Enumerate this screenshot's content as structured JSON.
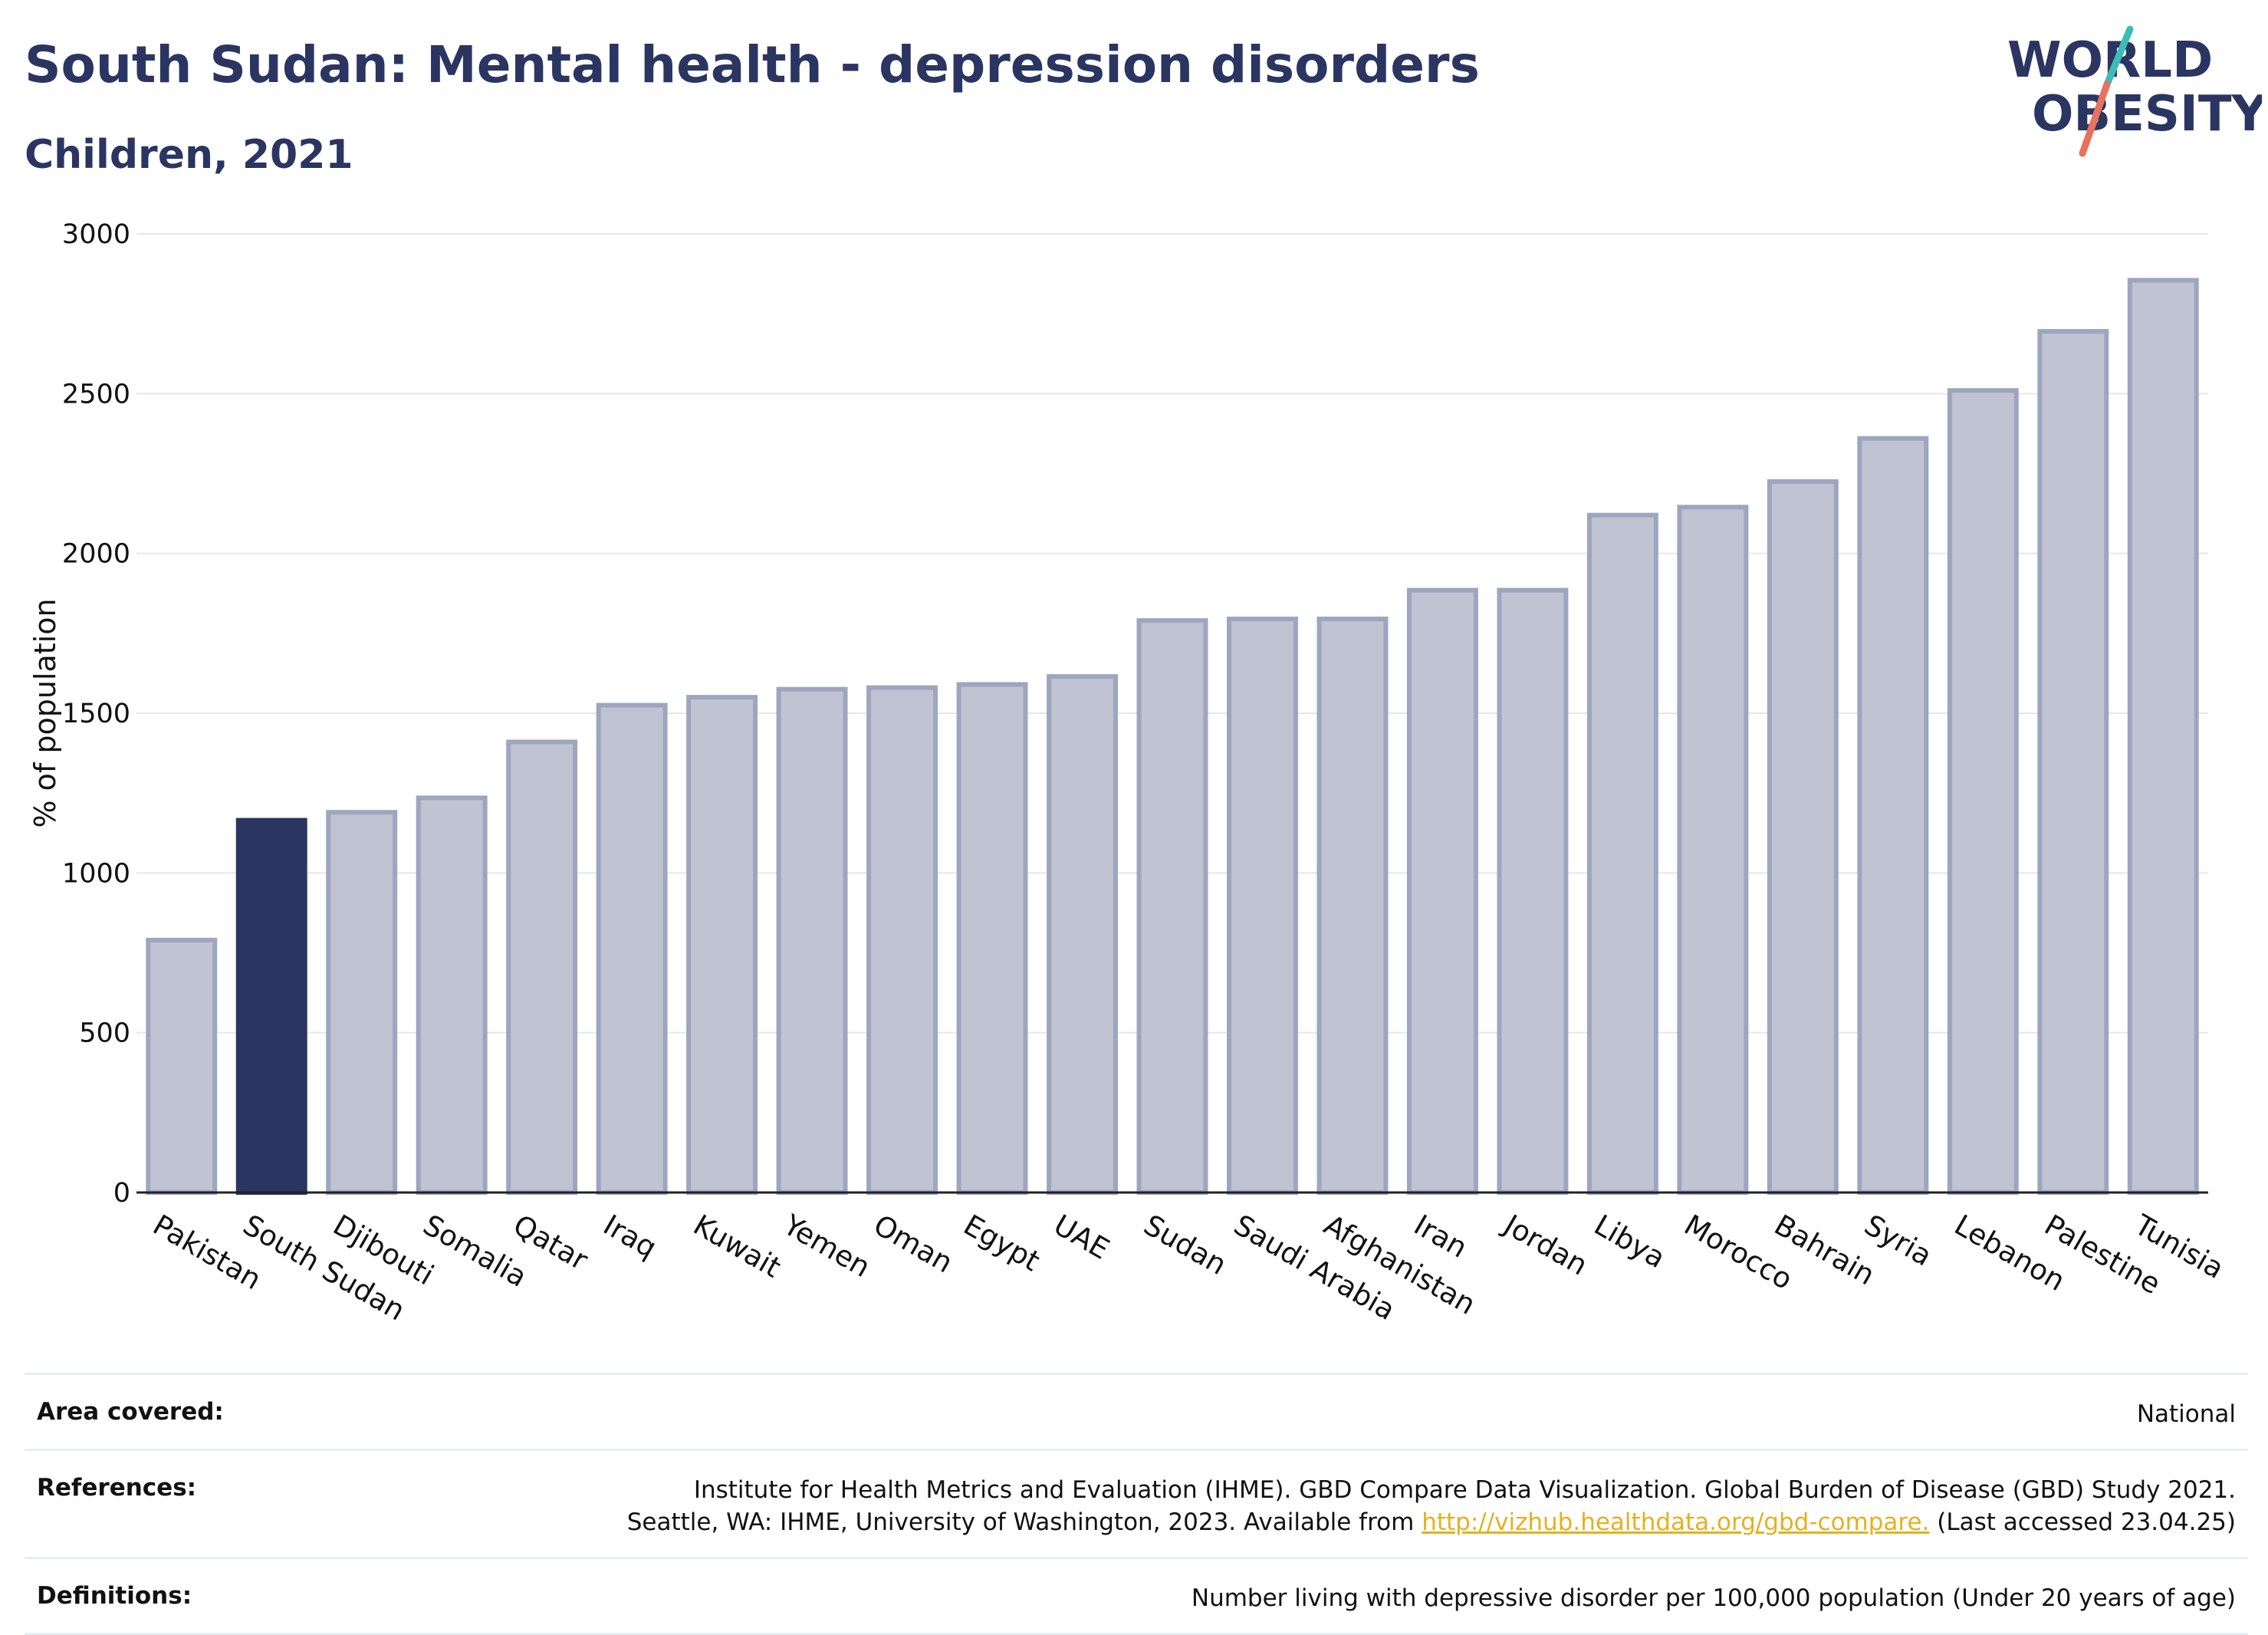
{
  "header": {
    "title": "South Sudan: Mental health - depression disorders",
    "subtitle": "Children, 2021"
  },
  "logo": {
    "line1": "WORLD",
    "line2": "OBESITY"
  },
  "colors": {
    "highlight": "#2b3561",
    "bar_fill": "#bfc3d2",
    "bar_stroke": "#9ea5bf",
    "accent_teal": "#3dbcb5",
    "accent_coral": "#e8715f",
    "link": "#e6b020"
  },
  "chart_data": {
    "type": "bar",
    "title": "South Sudan: Mental health - depression disorders",
    "subtitle": "Children, 2021",
    "ylabel": "% of population",
    "xlabel": "",
    "ylim": [
      0,
      3000
    ],
    "yticks": [
      0,
      500,
      1000,
      1500,
      2000,
      2500,
      3000
    ],
    "grid": true,
    "highlight": "South Sudan",
    "categories": [
      "Pakistan",
      "South Sudan",
      "Djibouti",
      "Somalia",
      "Qatar",
      "Iraq",
      "Kuwait",
      "Yemen",
      "Oman",
      "Egypt",
      "UAE",
      "Sudan",
      "Saudi Arabia",
      "Afghanistan",
      "Iran",
      "Jordan",
      "Libya",
      "Morocco",
      "Bahrain",
      "Syria",
      "Lebanon",
      "Palestine",
      "Tunisia"
    ],
    "values": [
      790,
      1165,
      1190,
      1235,
      1410,
      1525,
      1550,
      1575,
      1580,
      1590,
      1615,
      1790,
      1795,
      1795,
      1885,
      1885,
      2120,
      2145,
      2225,
      2360,
      2510,
      2695,
      2855
    ]
  },
  "meta": {
    "area": {
      "label": "Area covered:",
      "value": "National"
    },
    "references": {
      "label": "References:",
      "line1": "Institute for Health Metrics and Evaluation (IHME). GBD Compare Data Visualization. Global Burden of Disease (GBD) Study 2021.",
      "line2_pre": "Seattle, WA: IHME, University of Washington, 2023. Available from ",
      "link": "http://vizhub.healthdata.org/gbd-compare.",
      "line2_post": " (Last accessed 23.04.25)"
    },
    "definitions": {
      "label": "Definitions:",
      "value": "Number living with depressive disorder per 100,000 population (Under 20 years of age)"
    }
  }
}
